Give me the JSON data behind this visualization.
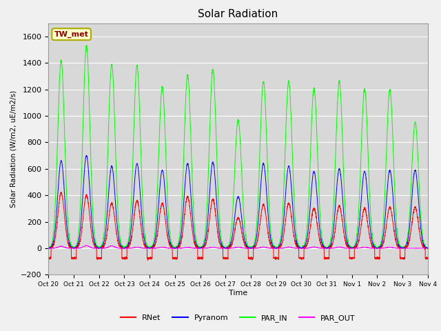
{
  "title": "Solar Radiation",
  "ylabel": "Solar Radiation (W/m2, uE/m2/s)",
  "xlabel": "Time",
  "ylim": [
    -200,
    1700
  ],
  "yticks": [
    -200,
    0,
    200,
    400,
    600,
    800,
    1000,
    1200,
    1400,
    1600
  ],
  "bg_color": "#f0f0f0",
  "plot_bg_color": "#d8d8d8",
  "grid_color": "white",
  "site_label": "TW_met",
  "site_label_color": "#8b0000",
  "site_label_bg": "#ffffcc",
  "site_label_border": "#aaaa00",
  "line_colors": {
    "RNet": "#ff0000",
    "Pyranom": "#0000ff",
    "PAR_IN": "#00ff00",
    "PAR_OUT": "#ff00ff"
  },
  "x_tick_labels": [
    "Oct 20",
    "Oct 21",
    "Oct 22",
    "Oct 23",
    "Oct 24",
    "Oct 25",
    "Oct 26",
    "Oct 27",
    "Oct 28",
    "Oct 29",
    "Oct 30",
    "Oct 31",
    "Nov 1",
    "Nov 2",
    "Nov 3",
    "Nov 4"
  ],
  "day_peaks_PAR_IN": [
    1420,
    1530,
    1390,
    1380,
    1220,
    1310,
    1350,
    970,
    1260,
    1260,
    1210,
    1260,
    1200,
    1200,
    950,
    0
  ],
  "day_peaks_Pyranom": [
    660,
    700,
    620,
    640,
    590,
    640,
    650,
    390,
    640,
    620,
    580,
    600,
    580,
    590,
    590,
    0
  ],
  "day_peaks_RNet": [
    420,
    400,
    340,
    360,
    340,
    390,
    370,
    230,
    330,
    340,
    300,
    320,
    300,
    310,
    310,
    0
  ],
  "day_peaks_PAR_OUT": [
    15,
    20,
    18,
    8,
    8,
    7,
    8,
    8,
    9,
    9,
    9,
    9,
    8,
    8,
    0,
    0
  ],
  "night_val_RNet": -75,
  "n_days": 15
}
